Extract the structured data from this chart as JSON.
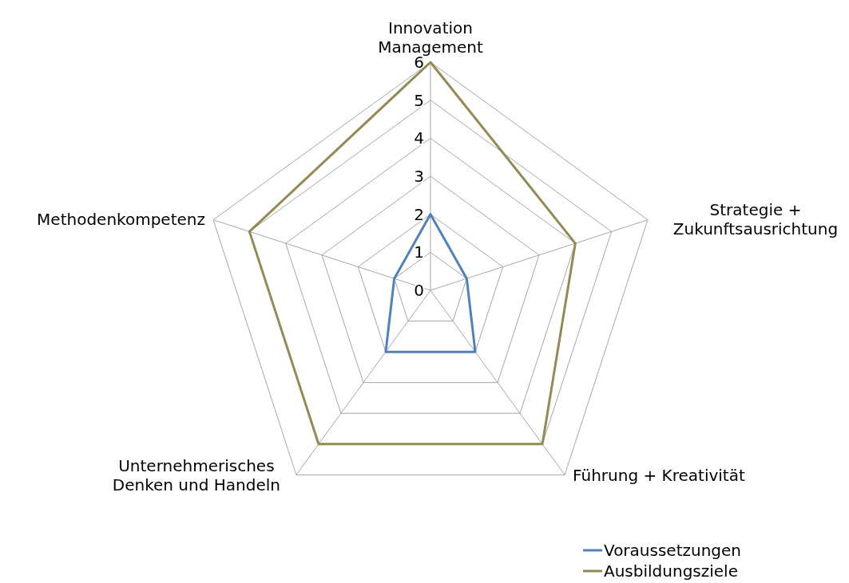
{
  "chart_data": {
    "type": "radar",
    "categories": [
      "Innovation Management",
      "Strategie + Zukunftsausrichtung",
      "Führung + Kreativität",
      "Unternehmerisches Denken und Handeln",
      "Methodenkompetenz"
    ],
    "series": [
      {
        "name": "Voraussetzungen",
        "color": "#4f81bd",
        "values": [
          2,
          1,
          2,
          2,
          1
        ]
      },
      {
        "name": "Ausbildungsziele",
        "color": "#948a54",
        "values": [
          6,
          4,
          5,
          5,
          5
        ]
      }
    ],
    "ylim": [
      0,
      6
    ],
    "yticks": [
      0,
      1,
      2,
      3,
      4,
      5,
      6
    ],
    "grid": true,
    "legend": "bottom right",
    "marker": "none"
  }
}
